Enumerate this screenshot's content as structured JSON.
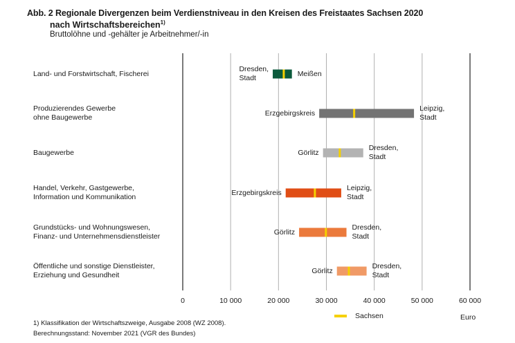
{
  "chart_data": {
    "type": "bar",
    "subtype": "range-bar",
    "title": "Abb. 2 Regionale Divergenzen beim Verdienstniveau in den Kreisen des Freistaates Sachsen 2020",
    "title_line2": "nach Wirtschaftsbereichen",
    "title_footnote_mark": "1)",
    "subtitle": "Bruttolöhne und -gehälter je Arbeitnehmer/-in",
    "xlabel": "Euro",
    "xlim": [
      0,
      60000
    ],
    "xticks": [
      0,
      10000,
      20000,
      30000,
      40000,
      50000,
      60000
    ],
    "xtick_labels": [
      "0",
      "10 000",
      "20 000",
      "30 000",
      "40 000",
      "50 000",
      "60 000"
    ],
    "grid": true,
    "legend": {
      "label": "Sachsen",
      "color": "#f5d000",
      "placement": "bottom"
    },
    "categories": [
      {
        "label_lines": [
          "Land- und Forstwirtschaft, Fischerei"
        ],
        "min": 18800,
        "max": 22800,
        "sachsen": 21100,
        "min_label_lines": [
          "Dresden,",
          "Stadt"
        ],
        "max_label_lines": [
          "Meißen"
        ],
        "color": "#0b5a3c"
      },
      {
        "label_lines": [
          "Produzierendes Gewerbe",
          "ohne Baugewerbe"
        ],
        "min": 28500,
        "max": 48300,
        "sachsen": 35800,
        "min_label_lines": [
          "Erzgebirgskreis"
        ],
        "max_label_lines": [
          "Leipzig,",
          "Stadt"
        ],
        "color": "#737373"
      },
      {
        "label_lines": [
          "Baugewerbe"
        ],
        "min": 29300,
        "max": 37700,
        "sachsen": 32800,
        "min_label_lines": [
          "Görlitz"
        ],
        "max_label_lines": [
          "Dresden,",
          "Stadt"
        ],
        "color": "#b3b3b3"
      },
      {
        "label_lines": [
          "Handel, Verkehr, Gastgewerbe,",
          "Information und Kommunikation"
        ],
        "min": 21500,
        "max": 33100,
        "sachsen": 27600,
        "min_label_lines": [
          "Erzgebirgskreis"
        ],
        "max_label_lines": [
          "Leipzig,",
          "Stadt"
        ],
        "color": "#e04e16"
      },
      {
        "label_lines": [
          "Grundstücks- und Wohnungswesen,",
          "Finanz- und Unternehmensdienstleister"
        ],
        "min": 24300,
        "max": 34200,
        "sachsen": 29900,
        "min_label_lines": [
          "Görlitz"
        ],
        "max_label_lines": [
          "Dresden,",
          "Stadt"
        ],
        "color": "#eb7a3c"
      },
      {
        "label_lines": [
          "Öffentliche und sonstige Dienstleister,",
          "Erziehung und Gesundheit"
        ],
        "min": 32200,
        "max": 38400,
        "sachsen": 34700,
        "min_label_lines": [
          "Görlitz"
        ],
        "max_label_lines": [
          "Dresden,",
          "Stadt"
        ],
        "color": "#f09a66"
      }
    ]
  },
  "footnotes": [
    "1) Klassifikation der Wirtschaftszweige, Ausgabe 2008 (WZ 2008).",
    "Berechnungsstand: November 2021 (VGR des Bundes)"
  ]
}
